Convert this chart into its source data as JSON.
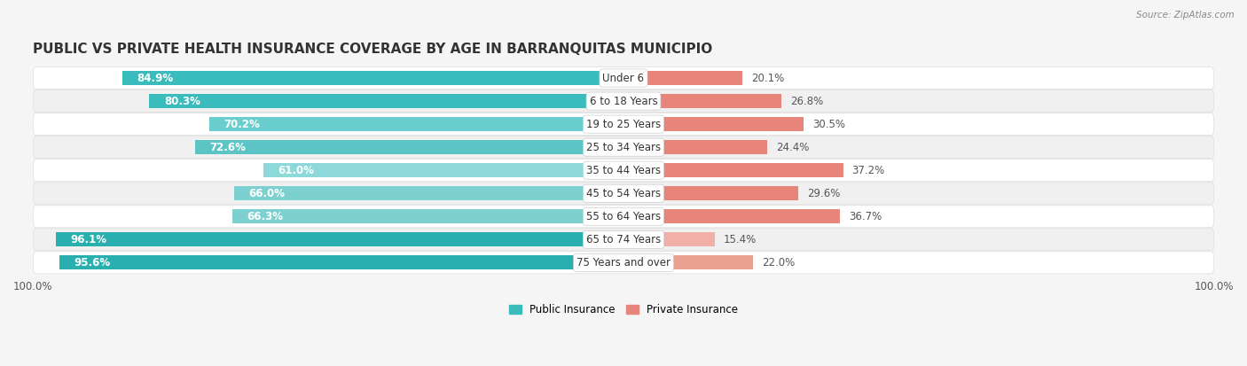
{
  "title": "PUBLIC VS PRIVATE HEALTH INSURANCE COVERAGE BY AGE IN BARRANQUITAS MUNICIPIO",
  "source": "Source: ZipAtlas.com",
  "categories": [
    "Under 6",
    "6 to 18 Years",
    "19 to 25 Years",
    "25 to 34 Years",
    "35 to 44 Years",
    "45 to 54 Years",
    "55 to 64 Years",
    "65 to 74 Years",
    "75 Years and over"
  ],
  "public_values": [
    84.9,
    80.3,
    70.2,
    72.6,
    61.0,
    66.0,
    66.3,
    96.1,
    95.6
  ],
  "private_values": [
    20.1,
    26.8,
    30.5,
    24.4,
    37.2,
    29.6,
    36.7,
    15.4,
    22.0
  ],
  "public_colors": [
    "#3BBCBC",
    "#3BBCBC",
    "#6ACECE",
    "#5CC4C4",
    "#8DD8D8",
    "#7DD0D0",
    "#7DD0D0",
    "#2AAFAF",
    "#2AAFAF"
  ],
  "private_colors": [
    "#E8857A",
    "#E8857A",
    "#E8857A",
    "#E8857A",
    "#E8857A",
    "#E8857A",
    "#E8857A",
    "#F0B0A8",
    "#E8A090"
  ],
  "public_color_legend": "#3BBCBC",
  "private_color_legend": "#E8857A",
  "bar_height": 0.62,
  "title_fontsize": 11,
  "label_fontsize": 8.5,
  "value_fontsize": 8.5,
  "legend_fontsize": 8.5,
  "source_fontsize": 7.5,
  "background_color": "#F5F5F5",
  "row_colors": [
    "#FFFFFF",
    "#F0F0F0",
    "#FFFFFF",
    "#F0F0F0",
    "#FFFFFF",
    "#F0F0F0",
    "#FFFFFF",
    "#F0F0F0",
    "#FFFFFF"
  ]
}
